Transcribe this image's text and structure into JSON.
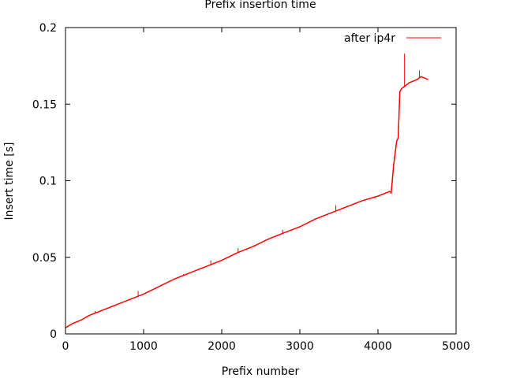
{
  "chart_data": {
    "type": "line",
    "title": "Prefix insertion time",
    "xlabel": "Prefix number",
    "ylabel": "Insert time [s]",
    "xlim": [
      0,
      5000
    ],
    "ylim": [
      0,
      0.2
    ],
    "xticks": [
      0,
      1000,
      2000,
      3000,
      4000,
      5000
    ],
    "xtick_labels": [
      "0",
      "1000",
      "2000",
      "3000",
      "4000",
      "5000"
    ],
    "yticks": [
      0,
      0.05,
      0.1,
      0.15,
      0.2
    ],
    "ytick_labels": [
      "0",
      "0.05",
      "0.1",
      "0.15",
      "0.2"
    ],
    "grid": false,
    "legend_position": "top-right",
    "series": [
      {
        "name": "after ip4r",
        "color": "#ff0000",
        "x": [
          0,
          100,
          200,
          300,
          400,
          500,
          600,
          700,
          800,
          900,
          1000,
          1200,
          1400,
          1600,
          1800,
          2000,
          2200,
          2400,
          2600,
          2800,
          3000,
          3200,
          3400,
          3600,
          3800,
          4000,
          4100,
          4150,
          4170,
          4200,
          4240,
          4260,
          4280,
          4300,
          4350,
          4400,
          4450,
          4500,
          4550,
          4600,
          4640
        ],
        "y": [
          0.004,
          0.007,
          0.009,
          0.012,
          0.014,
          0.016,
          0.018,
          0.02,
          0.022,
          0.024,
          0.026,
          0.031,
          0.036,
          0.04,
          0.044,
          0.048,
          0.053,
          0.057,
          0.062,
          0.066,
          0.07,
          0.075,
          0.079,
          0.083,
          0.087,
          0.09,
          0.092,
          0.093,
          0.092,
          0.11,
          0.126,
          0.128,
          0.158,
          0.16,
          0.162,
          0.164,
          0.165,
          0.166,
          0.168,
          0.167,
          0.166
        ]
      }
    ],
    "spikes": [
      {
        "x": 380,
        "y": 0.015
      },
      {
        "x": 930,
        "y": 0.028
      },
      {
        "x": 1510,
        "y": 0.039
      },
      {
        "x": 1860,
        "y": 0.048
      },
      {
        "x": 2210,
        "y": 0.056
      },
      {
        "x": 2780,
        "y": 0.068
      },
      {
        "x": 3460,
        "y": 0.084
      },
      {
        "x": 4340,
        "y": 0.183
      },
      {
        "x": 4530,
        "y": 0.172
      }
    ]
  }
}
